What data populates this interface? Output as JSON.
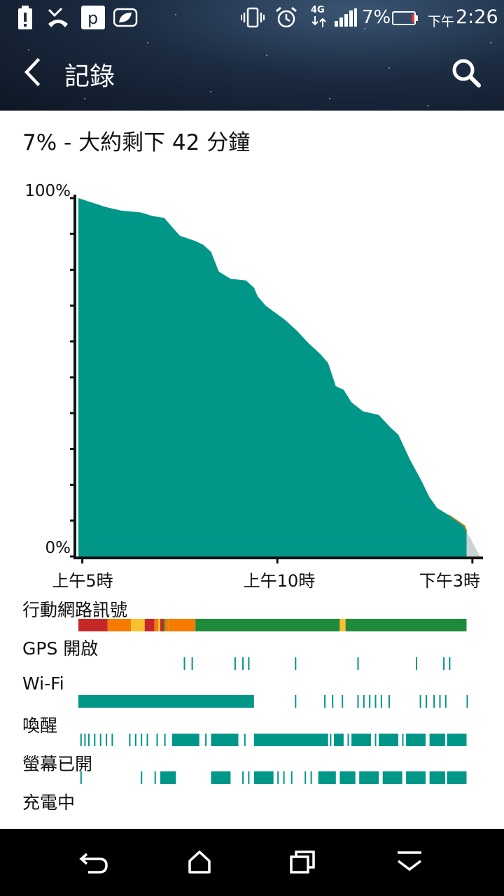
{
  "status_bar": {
    "battery_percent": "7%",
    "time_prefix": "下午",
    "time": "2:26",
    "network_label": "4G",
    "left_icons": [
      "battery-alert-icon",
      "missed-call-icon",
      "parking-app-icon",
      "leaf-eco-icon"
    ],
    "right_icons": [
      "vibrate-icon",
      "alarm-icon",
      "signal-4g-icon",
      "signal-bars-icon",
      "battery-icon"
    ]
  },
  "app_bar": {
    "title": "記錄",
    "back_icon": "back-arrow-icon",
    "search_icon": "search-icon"
  },
  "summary": {
    "text": "7% - 大約剩下 42 分鐘"
  },
  "colors": {
    "teal": "#009688",
    "header_dark": "#1c2c42",
    "projection": "#c9d3d6",
    "signal_green": "#1f8a3a",
    "signal_red": "#c62828",
    "signal_orange": "#f57c00",
    "signal_yellow": "#fbc02d"
  },
  "chart_data": {
    "type": "area",
    "y_axis": {
      "top_label": "100%",
      "bottom_label": "0%",
      "range": [
        0,
        100
      ]
    },
    "x_axis": {
      "labels": [
        "上午5時",
        "上午10時",
        "下午3時"
      ],
      "range_hours": [
        4.9,
        15.2
      ]
    },
    "battery_series": {
      "name": "battery",
      "points": [
        [
          4.9,
          100
        ],
        [
          5.6,
          97.5
        ],
        [
          6.0,
          96.5
        ],
        [
          6.5,
          96
        ],
        [
          6.8,
          95
        ],
        [
          7.1,
          94.5
        ],
        [
          7.3,
          92
        ],
        [
          7.5,
          89.5
        ],
        [
          7.9,
          88
        ],
        [
          8.1,
          87
        ],
        [
          8.3,
          85
        ],
        [
          8.5,
          79.5
        ],
        [
          8.8,
          77.5
        ],
        [
          9.2,
          77
        ],
        [
          9.4,
          75
        ],
        [
          9.5,
          72.5
        ],
        [
          9.7,
          70
        ],
        [
          10.2,
          66
        ],
        [
          10.5,
          63
        ],
        [
          10.8,
          59.5
        ],
        [
          11.1,
          56.5
        ],
        [
          11.3,
          54
        ],
        [
          11.5,
          47.5
        ],
        [
          11.7,
          46.5
        ],
        [
          11.9,
          43
        ],
        [
          12.2,
          40.5
        ],
        [
          12.6,
          39.5
        ],
        [
          12.9,
          36
        ],
        [
          13.1,
          34
        ],
        [
          13.4,
          27
        ],
        [
          13.5,
          25
        ],
        [
          13.7,
          21
        ],
        [
          13.9,
          16.5
        ],
        [
          14.1,
          13.5
        ],
        [
          14.4,
          11.5
        ],
        [
          14.6,
          10
        ],
        [
          14.8,
          8.5
        ],
        [
          14.85,
          7
        ]
      ],
      "projection_end": [
        15.2,
        0
      ]
    }
  },
  "rows": {
    "mobile_signal": {
      "label": "行動網路訊號",
      "segments": [
        [
          4.9,
          5.65,
          "#c62828"
        ],
        [
          5.65,
          6.25,
          "#f57c00"
        ],
        [
          6.25,
          6.6,
          "#fbc02d"
        ],
        [
          6.6,
          6.85,
          "#c62828"
        ],
        [
          6.85,
          6.95,
          "#f57c00"
        ],
        [
          6.95,
          7.0,
          "#fbc02d"
        ],
        [
          7.0,
          7.08,
          "#c62828"
        ],
        [
          7.08,
          7.12,
          "#1f8a3a"
        ],
        [
          7.12,
          7.2,
          "#f57c00"
        ],
        [
          7.2,
          7.9,
          "#f57c00"
        ],
        [
          7.9,
          8.3,
          "#1f8a3a"
        ],
        [
          8.3,
          11.6,
          "#1f8a3a"
        ],
        [
          11.6,
          11.75,
          "#fbc02d"
        ],
        [
          11.75,
          14.85,
          "#1f8a3a"
        ]
      ]
    },
    "gps": {
      "label": "GPS 開啟",
      "ticks": [
        7.6,
        7.8,
        8.9,
        9.1,
        9.25,
        10.45,
        12.05,
        13.55,
        14.25,
        14.4
      ]
    },
    "wifi": {
      "label": "Wi-Fi",
      "blocks": [
        [
          4.9,
          9.4
        ]
      ],
      "ticks": [
        10.45,
        11.2,
        11.4,
        11.65,
        12.05,
        12.2,
        12.35,
        12.5,
        12.65,
        12.85,
        13.65,
        13.8,
        14.0,
        14.15,
        14.3,
        14.85
      ]
    },
    "awake": {
      "label": "喚醒",
      "blocks": [
        [
          7.3,
          8.0
        ],
        [
          8.3,
          9.0
        ],
        [
          9.4,
          11.3
        ],
        [
          11.45,
          11.7
        ],
        [
          11.9,
          12.4
        ],
        [
          12.6,
          13.1
        ],
        [
          13.3,
          13.8
        ],
        [
          13.9,
          14.3
        ],
        [
          14.35,
          14.85
        ]
      ],
      "ticks": [
        4.95,
        5.05,
        5.15,
        5.3,
        5.45,
        5.6,
        5.75,
        6.2,
        6.35,
        6.5,
        6.65,
        6.9,
        7.1,
        8.15,
        9.15,
        11.35,
        11.8,
        12.5,
        13.2
      ]
    },
    "screen_on": {
      "label": "螢幕已開",
      "blocks": [
        [
          7.0,
          7.4
        ],
        [
          8.3,
          8.8
        ],
        [
          9.4,
          9.9
        ],
        [
          11.05,
          11.5
        ],
        [
          11.6,
          12.0
        ],
        [
          12.1,
          12.6
        ],
        [
          12.7,
          13.2
        ],
        [
          13.3,
          13.8
        ],
        [
          13.9,
          14.3
        ],
        [
          14.35,
          14.85
        ]
      ],
      "ticks": [
        4.95,
        6.5,
        6.85,
        9.1,
        9.25,
        10.0,
        10.15,
        10.35,
        10.7,
        10.85
      ]
    },
    "charging": {
      "label": "充電中"
    }
  },
  "nav_bar": {
    "icons": [
      "back-nav-icon",
      "home-nav-icon",
      "recents-nav-icon",
      "menu-down-nav-icon"
    ]
  }
}
